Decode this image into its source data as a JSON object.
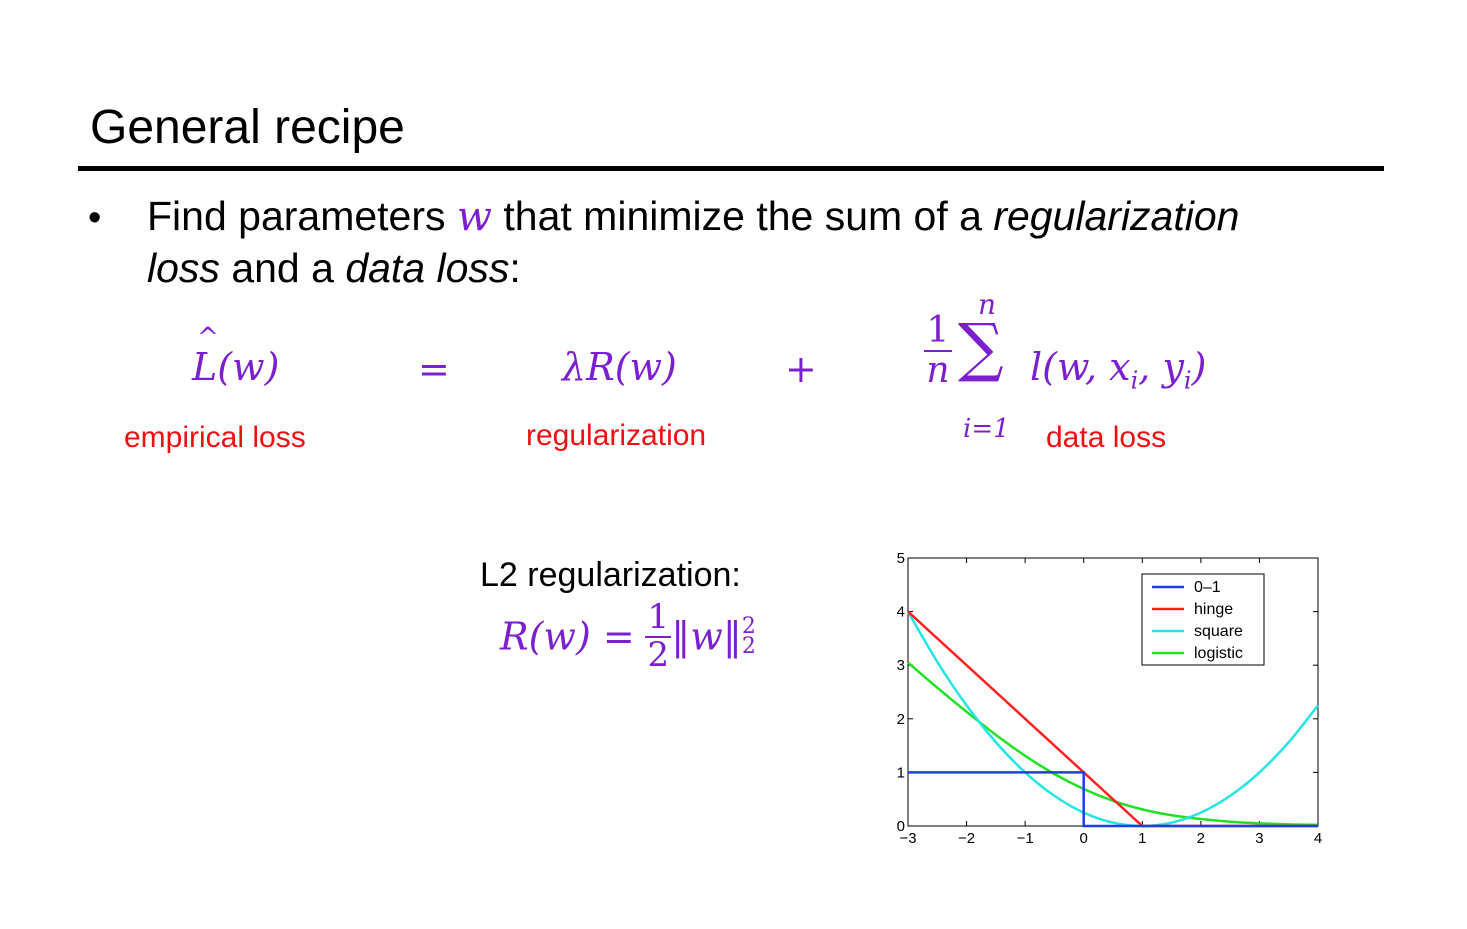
{
  "slide": {
    "title": "General recipe",
    "bullet": {
      "t1": "Find parameters ",
      "w": "w",
      "t2": " that minimize the sum of a ",
      "reg": "regularization",
      "t3": "loss",
      "t4": " and a ",
      "dl": "data loss",
      "t5": ":"
    },
    "formula": {
      "lhs": "L",
      "lhs_arg": "(w)",
      "eq": "=",
      "term1": "λR(w)",
      "plus": "+",
      "frac_num": "1",
      "frac_den": "n",
      "sum_top": "n",
      "sum_sym": "∑",
      "sum_bottom": "i=1",
      "loss": "l(w, x",
      "sub_i1": "i",
      "mid": ", y",
      "sub_i2": "i",
      "close": ")"
    },
    "labels": {
      "empirical": "empirical loss",
      "regularization": "regularization",
      "data": "data loss"
    },
    "l2": {
      "heading": "L2 regularization:",
      "lhs": "R(w) =",
      "num": "1",
      "den": "2",
      "norm_open": "‖",
      "w": "w",
      "norm_close": "‖",
      "sup": "2",
      "sub": "2"
    },
    "colors": {
      "math": "#7b1fd0",
      "label": "#ee1111"
    }
  },
  "chart_data": {
    "type": "line",
    "xlim": [
      -3,
      4
    ],
    "ylim": [
      0,
      5
    ],
    "xticks": [
      "−3",
      "−2",
      "−1",
      "0",
      "1",
      "2",
      "3",
      "4"
    ],
    "yticks": [
      "0",
      "1",
      "2",
      "3",
      "4",
      "5"
    ],
    "legend_position": "top-right",
    "series": [
      {
        "name": "0–1",
        "color": "#1f3fe0",
        "kind": "step",
        "points": [
          [
            -3,
            1
          ],
          [
            0,
            1
          ],
          [
            0,
            0
          ],
          [
            4,
            0
          ]
        ]
      },
      {
        "name": "hinge",
        "color": "#ff2020",
        "kind": "line",
        "points": [
          [
            -3,
            4
          ],
          [
            1,
            0
          ],
          [
            4,
            0
          ]
        ]
      },
      {
        "name": "square",
        "color": "#22e5e5",
        "kind": "curve",
        "x": [
          -3,
          -2.5,
          -2,
          -1.5,
          -1,
          -0.5,
          0,
          0.5,
          1,
          1.5,
          2,
          2.5,
          3,
          3.5,
          4
        ],
        "y": [
          4,
          3.0625,
          2.25,
          1.5625,
          1,
          0.5625,
          0.25,
          0.0625,
          0,
          0.0625,
          0.25,
          0.5625,
          1,
          1.5625,
          2.25
        ]
      },
      {
        "name": "logistic",
        "color": "#22e022",
        "kind": "curve",
        "x": [
          -3,
          -2.5,
          -2,
          -1.5,
          -1,
          -0.5,
          0,
          0.5,
          1,
          1.5,
          2,
          2.5,
          3,
          3.5,
          4
        ],
        "y": [
          3.05,
          2.58,
          2.13,
          1.7,
          1.31,
          0.97,
          0.69,
          0.47,
          0.31,
          0.2,
          0.13,
          0.08,
          0.05,
          0.03,
          0.02
        ]
      }
    ]
  }
}
